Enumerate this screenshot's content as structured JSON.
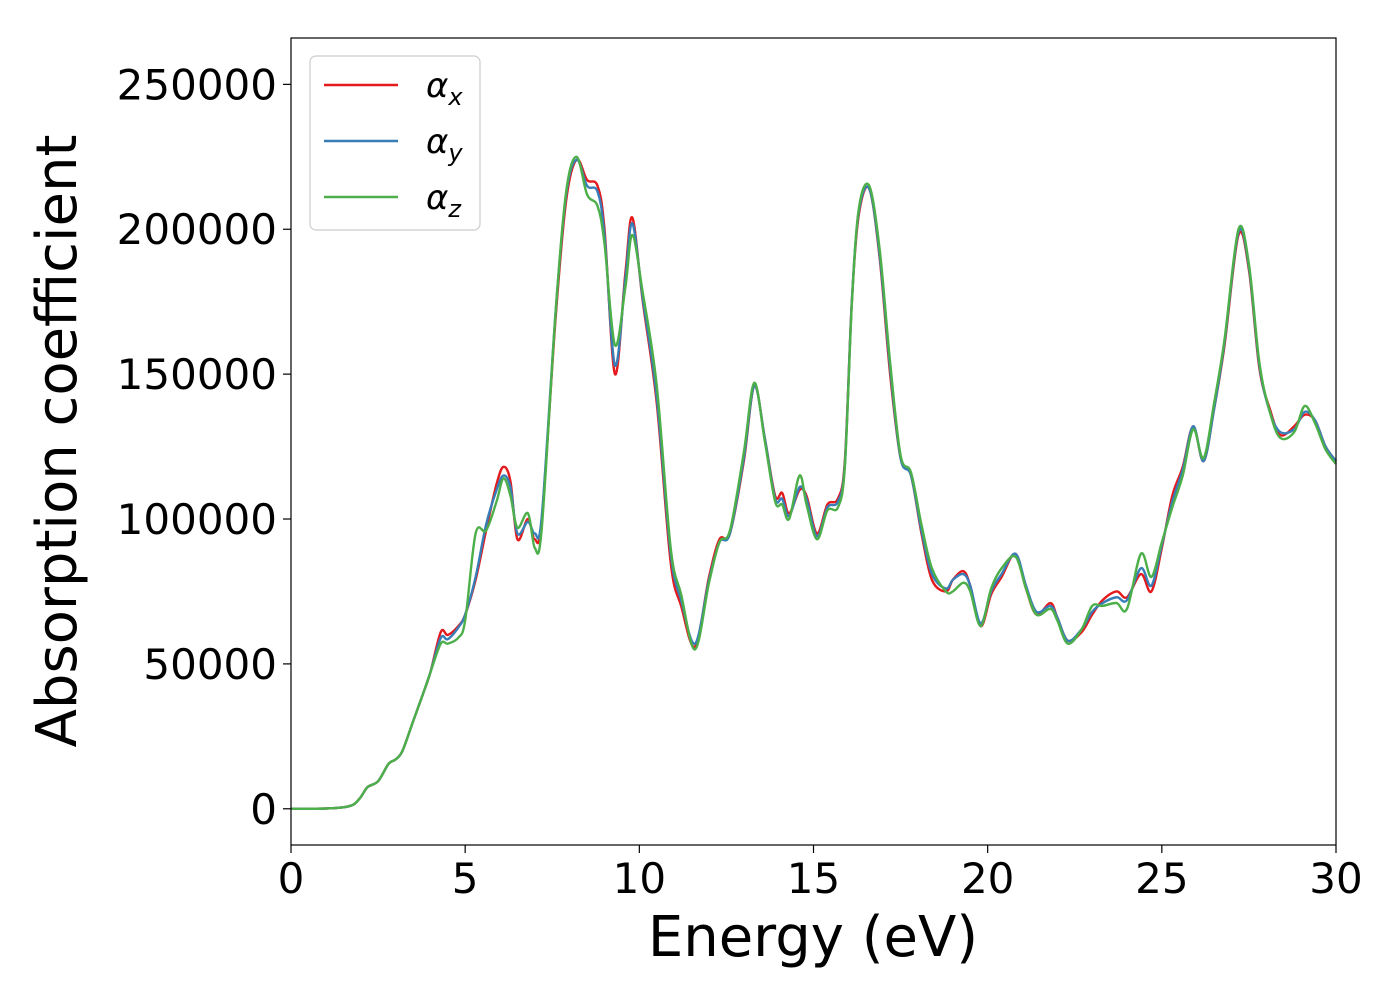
{
  "chart_data": {
    "type": "line",
    "xlabel": "Energy (eV)",
    "ylabel": "Absorption coefficient",
    "xlim": [
      0,
      30
    ],
    "ylim": [
      -12500,
      266000
    ],
    "xticks": [
      0,
      5,
      10,
      15,
      20,
      25,
      30
    ],
    "xtick_labels": [
      "0",
      "5",
      "10",
      "15",
      "20",
      "25",
      "30"
    ],
    "yticks": [
      0,
      50000,
      100000,
      150000,
      200000,
      250000
    ],
    "ytick_labels": [
      "0",
      "50000",
      "100000",
      "150000",
      "200000",
      "250000"
    ],
    "grid": false,
    "legend_position": "top-left",
    "x": [
      0,
      0.5,
      1,
      1.5,
      1.8,
      2,
      2.2,
      2.5,
      2.8,
      3,
      3.2,
      3.5,
      3.8,
      4,
      4.3,
      4.5,
      4.8,
      5,
      5.3,
      5.6,
      5.9,
      6.1,
      6.3,
      6.5,
      6.8,
      7.0,
      7.2,
      7.6,
      7.9,
      8.2,
      8.5,
      8.8,
      9.0,
      9.3,
      9.6,
      9.8,
      10.1,
      10.5,
      10.9,
      11.2,
      11.6,
      12.0,
      12.3,
      12.6,
      13.0,
      13.3,
      13.6,
      13.9,
      14.1,
      14.3,
      14.6,
      14.8,
      15.1,
      15.4,
      15.7,
      15.9,
      16.1,
      16.3,
      16.6,
      16.9,
      17.2,
      17.5,
      17.8,
      18.1,
      18.4,
      18.8,
      19.0,
      19.3,
      19.5,
      19.8,
      20.1,
      20.4,
      20.8,
      21.1,
      21.4,
      21.8,
      22.0,
      22.3,
      22.7,
      23.0,
      23.3,
      23.7,
      24.0,
      24.4,
      24.7,
      25.0,
      25.3,
      25.6,
      25.9,
      26.2,
      26.5,
      26.8,
      27.2,
      27.5,
      27.8,
      28.1,
      28.4,
      28.8,
      29.1,
      29.4,
      29.7,
      30.0
    ],
    "series": [
      {
        "name": "αx",
        "color": "#e41a1c",
        "values": [
          0,
          0,
          100,
          500,
          1500,
          4000,
          7500,
          9500,
          15500,
          17000,
          20000,
          30000,
          40000,
          47000,
          61000,
          60000,
          63000,
          67000,
          79000,
          96000,
          112000,
          118000,
          113000,
          93000,
          100000,
          93000,
          100000,
          170000,
          210000,
          224000,
          217000,
          215000,
          200000,
          150000,
          185000,
          204000,
          175000,
          140000,
          85000,
          70000,
          56000,
          80000,
          93000,
          95000,
          120000,
          146000,
          128000,
          108000,
          109000,
          102000,
          110000,
          108000,
          95000,
          105000,
          107000,
          120000,
          175000,
          205000,
          214000,
          190000,
          150000,
          121000,
          115000,
          95000,
          79000,
          75000,
          79000,
          82000,
          77000,
          63000,
          74000,
          80000,
          88000,
          76000,
          67000,
          71000,
          66000,
          58000,
          61000,
          67000,
          72000,
          75000,
          73000,
          81000,
          75000,
          90000,
          108000,
          118000,
          132000,
          120000,
          138000,
          160000,
          198000,
          186000,
          152000,
          138000,
          129000,
          132000,
          136000,
          134000,
          125000,
          120000
        ]
      },
      {
        "name": "αy",
        "color": "#377eb8",
        "values": [
          0,
          0,
          100,
          500,
          1500,
          4000,
          7500,
          9500,
          15500,
          17000,
          20000,
          30000,
          40000,
          47000,
          59000,
          58500,
          62500,
          67000,
          80000,
          98000,
          110000,
          115000,
          111000,
          95000,
          99000,
          95000,
          101000,
          172000,
          212000,
          224000,
          215000,
          213000,
          198000,
          153000,
          183000,
          202000,
          176000,
          142000,
          88000,
          72000,
          57000,
          79000,
          92000,
          95000,
          121000,
          146000,
          128000,
          107000,
          107000,
          101000,
          111000,
          107000,
          94000,
          104000,
          106000,
          119000,
          175000,
          206000,
          214000,
          191000,
          152000,
          121000,
          115000,
          96000,
          81000,
          76000,
          79000,
          81000,
          77000,
          64000,
          75000,
          81000,
          88000,
          77000,
          68000,
          70000,
          66000,
          58000,
          62000,
          68000,
          71000,
          73000,
          72000,
          83000,
          77000,
          91000,
          106000,
          117000,
          132000,
          120000,
          138000,
          161000,
          199000,
          187000,
          153000,
          137000,
          130000,
          131000,
          137000,
          134000,
          125000,
          120000
        ]
      },
      {
        "name": "αz",
        "color": "#4daf4a",
        "values": [
          0,
          0,
          100,
          500,
          1500,
          4000,
          7500,
          9500,
          15500,
          17000,
          20000,
          30000,
          40000,
          47000,
          57000,
          57000,
          59000,
          65000,
          95000,
          96000,
          106000,
          114000,
          108000,
          97000,
          102000,
          90000,
          97000,
          172000,
          213000,
          225000,
          212000,
          208000,
          195000,
          160000,
          180000,
          198000,
          178000,
          146000,
          90000,
          74000,
          55000,
          78000,
          92000,
          96000,
          123000,
          147000,
          127000,
          106000,
          105000,
          100000,
          115000,
          105000,
          93000,
          103000,
          104000,
          118000,
          174000,
          207000,
          215000,
          193000,
          154000,
          122000,
          116000,
          98000,
          83000,
          75000,
          75000,
          78000,
          75000,
          63000,
          76000,
          83000,
          87000,
          76000,
          67000,
          69000,
          65000,
          57000,
          62000,
          70000,
          70000,
          71000,
          69000,
          88000,
          80000,
          92000,
          104000,
          115000,
          131000,
          121000,
          140000,
          162000,
          200000,
          188000,
          154000,
          137000,
          128000,
          130000,
          139000,
          133000,
          124000,
          119000
        ]
      }
    ]
  }
}
